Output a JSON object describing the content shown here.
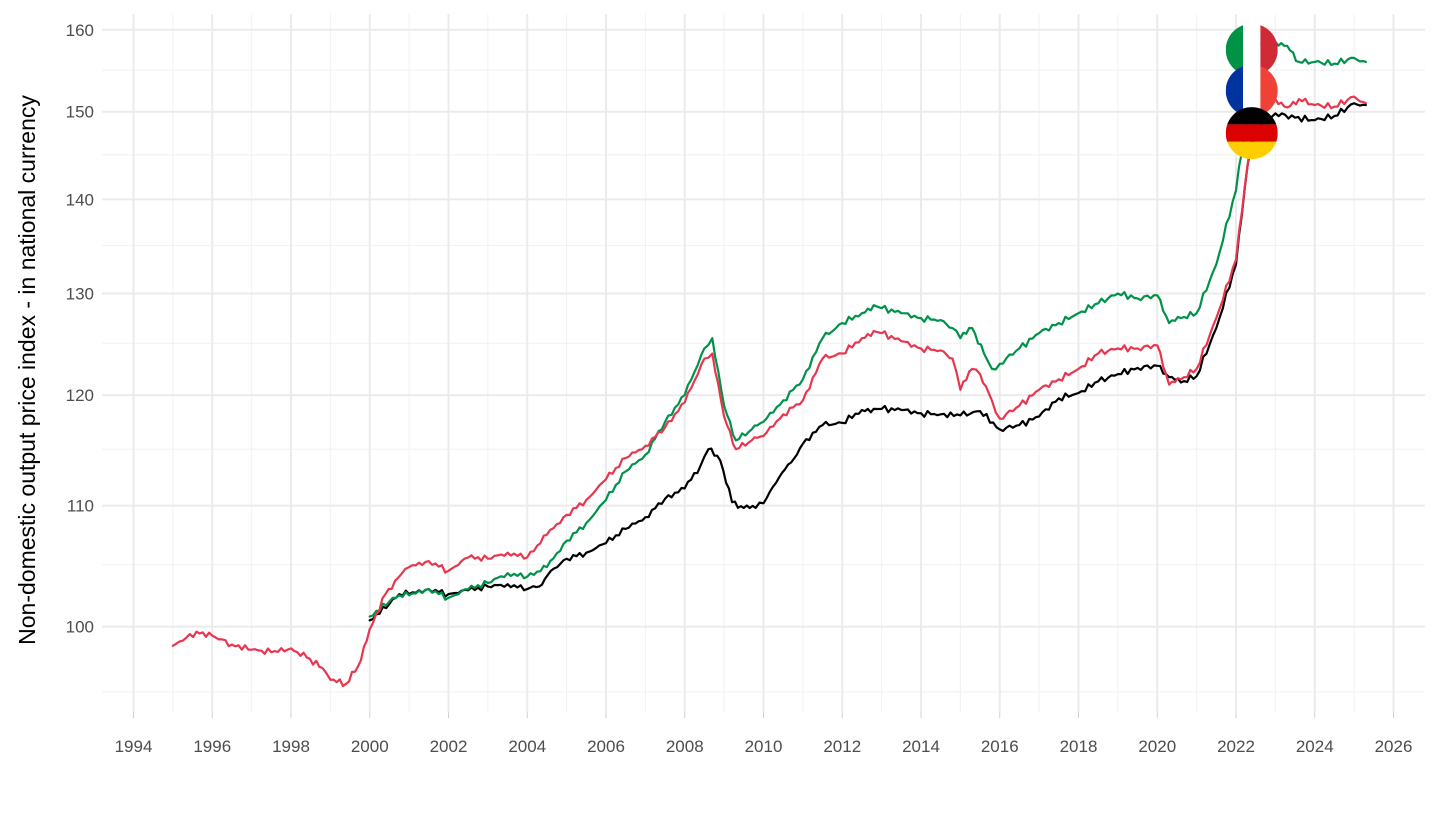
{
  "chart_data": {
    "type": "line",
    "title": "",
    "xlabel": "",
    "ylabel": "Non-domestic output price index - in national currency",
    "y_scale": "log",
    "xlim": [
      1993.2,
      2026.8
    ],
    "ylim": [
      93.5,
      162
    ],
    "x_ticks": [
      1994,
      1996,
      1998,
      2000,
      2002,
      2004,
      2006,
      2008,
      2010,
      2012,
      2014,
      2016,
      2018,
      2020,
      2022,
      2024,
      2026
    ],
    "x_tick_labels": [
      "1994",
      "1996",
      "1998",
      "2000",
      "2002",
      "2004",
      "2006",
      "2008",
      "2010",
      "2012",
      "2014",
      "2016",
      "2018",
      "2020",
      "2022",
      "2024",
      "2026"
    ],
    "y_ticks": [
      100,
      110,
      120,
      130,
      140,
      150,
      160
    ],
    "y_tick_labels": [
      "100",
      "110",
      "120",
      "130",
      "140",
      "150",
      "160"
    ],
    "y_minor_ticks": [
      95,
      105,
      115,
      125,
      135,
      145,
      155
    ],
    "grid": true,
    "legend": "flag markers at the end of each series",
    "series": [
      {
        "country": "Germany",
        "flag": "germany-flag",
        "color": "#000000",
        "x": [
          2000.0,
          2000.5,
          2000.75,
          2001.0,
          2001.5,
          2002.0,
          2002.5,
          2003.0,
          2003.5,
          2004.0,
          2004.3,
          2004.6,
          2005.0,
          2005.5,
          2006.0,
          2006.5,
          2007.0,
          2007.5,
          2008.0,
          2008.4,
          2008.6,
          2008.9,
          2009.2,
          2009.5,
          2009.8,
          2010.0,
          2010.4,
          2010.7,
          2011.0,
          2011.5,
          2012.0,
          2012.5,
          2012.8,
          2013.0,
          2013.5,
          2014.0,
          2014.5,
          2015.0,
          2015.5,
          2016.0,
          2016.5,
          2017.0,
          2017.5,
          2018.0,
          2018.5,
          2019.0,
          2019.5,
          2020.0,
          2020.3,
          2020.6,
          2021.0,
          2021.5,
          2022.0,
          2022.3,
          2022.5,
          2022.8,
          2023.0,
          2023.5,
          2024.0,
          2024.5,
          2025.0,
          2025.3
        ],
        "y": [
          100.5,
          101.8,
          102.6,
          102.6,
          103.0,
          102.6,
          102.9,
          103.2,
          103.4,
          103.0,
          103.2,
          104.5,
          105.5,
          106.0,
          106.8,
          108.0,
          109.0,
          110.6,
          111.5,
          113.5,
          115.0,
          114.0,
          110.3,
          109.8,
          109.8,
          110.2,
          112.5,
          113.8,
          115.5,
          117.2,
          117.4,
          118.6,
          118.7,
          118.7,
          118.6,
          118.3,
          118.2,
          118.1,
          118.5,
          116.8,
          117.2,
          118.0,
          119.7,
          120.2,
          121.3,
          122.0,
          122.6,
          122.8,
          121.7,
          121.2,
          121.8,
          126.5,
          133.0,
          144.0,
          147.5,
          149.3,
          149.8,
          149.3,
          149.0,
          149.5,
          151.0,
          150.8
        ]
      },
      {
        "country": "France",
        "flag": "france-flag",
        "color": "#e8364f",
        "x": [
          1995.0,
          1995.6,
          1996.0,
          1996.5,
          1997.0,
          1997.5,
          1998.0,
          1998.4,
          1998.8,
          1999.0,
          1999.4,
          1999.7,
          2000.0,
          2000.4,
          2000.8,
          2001.0,
          2001.5,
          2002.0,
          2002.5,
          2003.0,
          2003.5,
          2004.0,
          2004.5,
          2005.0,
          2005.5,
          2006.0,
          2006.5,
          2007.0,
          2007.5,
          2008.0,
          2008.5,
          2008.7,
          2009.0,
          2009.3,
          2009.7,
          2010.0,
          2010.5,
          2011.0,
          2011.5,
          2012.0,
          2012.5,
          2012.8,
          2013.0,
          2013.5,
          2014.0,
          2014.5,
          2014.8,
          2015.0,
          2015.3,
          2015.5,
          2015.8,
          2016.0,
          2016.5,
          2017.0,
          2017.5,
          2018.0,
          2018.5,
          2019.0,
          2019.5,
          2020.0,
          2020.3,
          2020.6,
          2021.0,
          2021.5,
          2022.0,
          2022.3,
          2022.5,
          2023.0,
          2023.3,
          2023.6,
          2024.0,
          2024.5,
          2025.0,
          2025.3
        ],
        "y": [
          98.5,
          99.6,
          99.3,
          98.6,
          98.2,
          98.0,
          98.3,
          97.6,
          96.8,
          95.9,
          95.6,
          96.9,
          99.8,
          102.6,
          104.2,
          104.8,
          105.3,
          104.5,
          105.6,
          105.5,
          106.0,
          105.6,
          107.5,
          109.2,
          110.5,
          112.3,
          114.2,
          115.3,
          117.0,
          119.3,
          123.5,
          124.0,
          118.0,
          115.0,
          115.8,
          116.2,
          118.2,
          119.5,
          123.5,
          124.0,
          125.5,
          126.2,
          126.0,
          125.2,
          124.5,
          124.3,
          123.5,
          120.5,
          122.5,
          122.0,
          119.5,
          117.8,
          119.0,
          120.5,
          121.5,
          122.5,
          124.0,
          124.5,
          124.5,
          124.8,
          121.0,
          121.5,
          122.5,
          127.5,
          133.5,
          144.0,
          149.5,
          151.5,
          150.5,
          151.5,
          150.8,
          150.6,
          151.8,
          151.0
        ]
      },
      {
        "country": "Italy",
        "flag": "italy-flag",
        "color": "#00924a",
        "x": [
          2000.0,
          2000.5,
          2000.75,
          2001.0,
          2001.5,
          2002.0,
          2002.5,
          2003.0,
          2003.5,
          2004.0,
          2004.5,
          2005.0,
          2005.5,
          2006.0,
          2006.5,
          2007.0,
          2007.5,
          2008.0,
          2008.5,
          2008.7,
          2009.0,
          2009.3,
          2009.7,
          2010.0,
          2010.5,
          2011.0,
          2011.5,
          2012.0,
          2012.5,
          2012.8,
          2013.0,
          2013.5,
          2014.0,
          2014.5,
          2014.8,
          2015.0,
          2015.3,
          2015.6,
          2015.8,
          2016.0,
          2016.5,
          2017.0,
          2017.5,
          2018.0,
          2018.5,
          2019.0,
          2019.5,
          2020.0,
          2020.3,
          2020.6,
          2021.0,
          2021.5,
          2022.0,
          2022.3,
          2022.5,
          2023.0,
          2023.3,
          2023.6,
          2024.0,
          2024.5,
          2025.0,
          2025.3
        ],
        "y": [
          100.8,
          102.0,
          102.5,
          102.5,
          103.0,
          102.3,
          103.0,
          103.5,
          104.3,
          104.0,
          104.8,
          107.0,
          108.5,
          110.5,
          113.0,
          114.5,
          117.5,
          120.0,
          124.5,
          125.5,
          119.0,
          115.8,
          116.8,
          117.5,
          119.5,
          121.5,
          125.5,
          127.0,
          128.0,
          128.8,
          128.5,
          128.0,
          127.5,
          127.3,
          126.5,
          125.5,
          126.5,
          124.0,
          122.5,
          123.0,
          124.5,
          126.0,
          127.0,
          128.0,
          129.0,
          130.0,
          129.5,
          129.8,
          127.0,
          127.5,
          128.0,
          133.0,
          141.0,
          150.0,
          158.0,
          158.5,
          158.0,
          156.0,
          156.0,
          155.8,
          156.5,
          156.0
        ]
      }
    ]
  }
}
